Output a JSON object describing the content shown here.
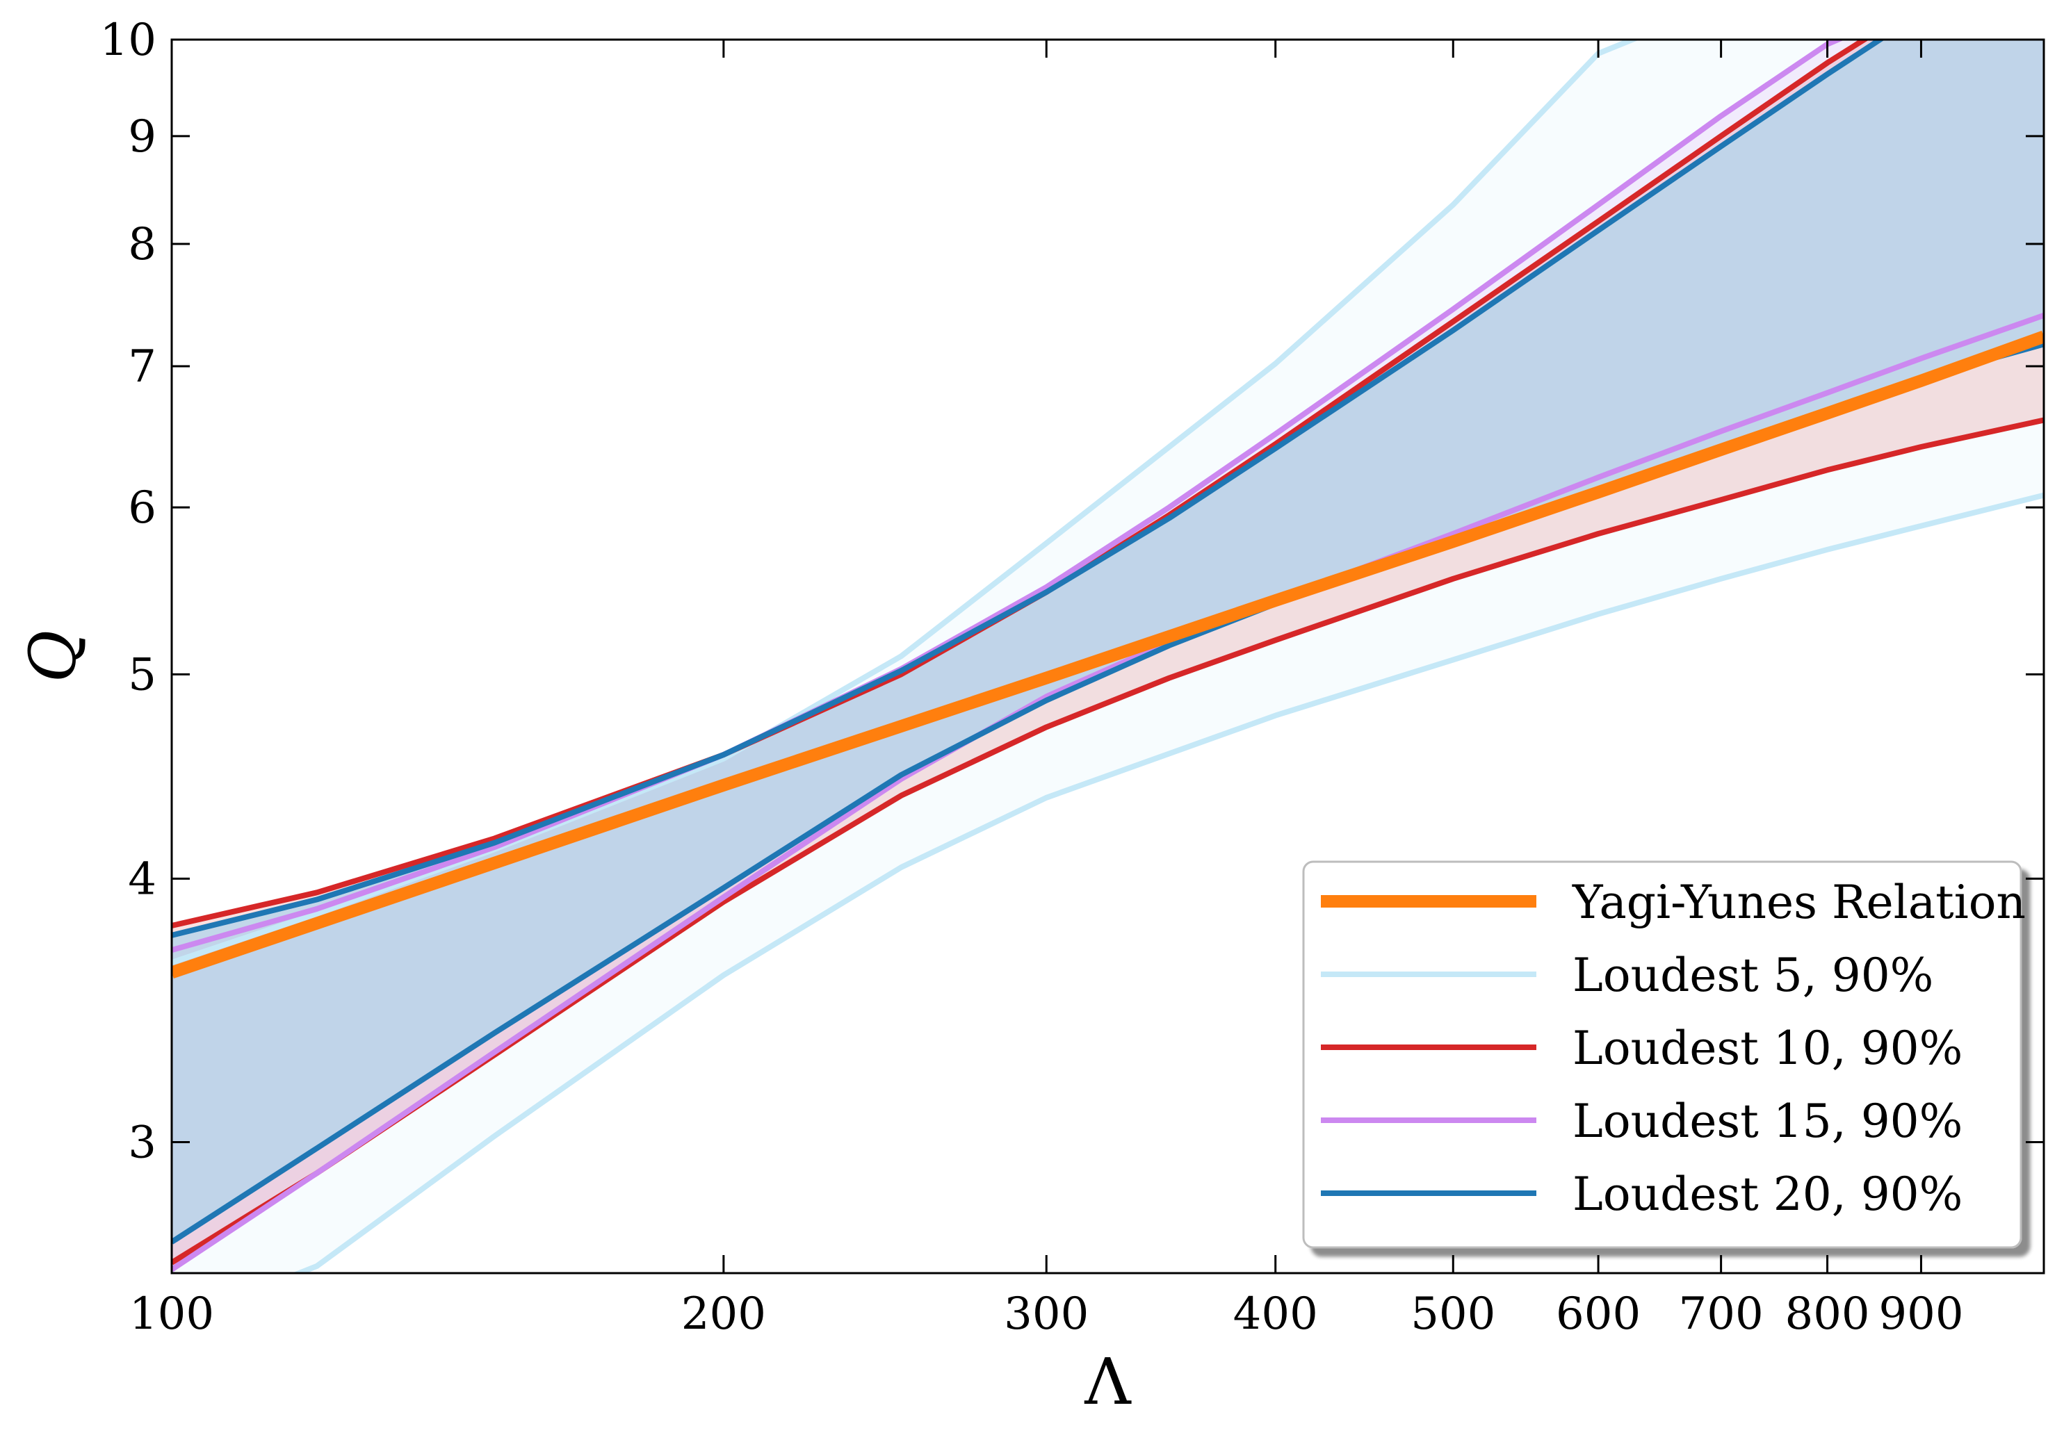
{
  "chart_data": {
    "type": "line",
    "title": "",
    "xlabel": "Λ",
    "ylabel": "Q",
    "x_scale": "log",
    "y_scale": "log",
    "xlim": [
      100,
      1050
    ],
    "ylim": [
      2.6,
      10
    ],
    "xticks": [
      {
        "value": 100,
        "label": "100"
      },
      {
        "value": 200,
        "label": "200"
      },
      {
        "value": 300,
        "label": "300"
      },
      {
        "value": 400,
        "label": "400"
      },
      {
        "value": 500,
        "label": "500"
      },
      {
        "value": 600,
        "label": "600"
      },
      {
        "value": 700,
        "label": "700"
      },
      {
        "value": 800,
        "label": "800"
      },
      {
        "value": 900,
        "label": "900"
      }
    ],
    "yticks": [
      {
        "value": 3,
        "label": "3"
      },
      {
        "value": 4,
        "label": "4"
      },
      {
        "value": 5,
        "label": "5"
      },
      {
        "value": 6,
        "label": "6"
      },
      {
        "value": 7,
        "label": "7"
      },
      {
        "value": 8,
        "label": "8"
      },
      {
        "value": 9,
        "label": "9"
      },
      {
        "value": 10,
        "label": "10"
      }
    ],
    "grid": false,
    "legend_position": "lower-right",
    "series": [
      {
        "name": "Yagi-Yunes Relation",
        "color": "#ff7f0e",
        "kind": "line",
        "x": [
          100,
          200,
          300,
          400,
          500,
          600,
          700,
          800,
          900,
          1050
        ],
        "y": [
          3.61,
          4.43,
          4.98,
          5.42,
          5.78,
          6.1,
          6.39,
          6.65,
          6.89,
          7.23
        ]
      },
      {
        "name": "Loudest 5, 90%",
        "color": "#c5e8f7",
        "kind": "band",
        "x": [
          100,
          120,
          150,
          200,
          250,
          300,
          400,
          500,
          600,
          700,
          800,
          900,
          1050
        ],
        "upper": [
          3.65,
          3.85,
          4.13,
          4.56,
          5.1,
          5.77,
          7.02,
          8.35,
          9.85,
          10.4,
          10.4,
          10.4,
          10.4
        ],
        "lower": [
          2.46,
          2.62,
          3.02,
          3.6,
          4.05,
          4.37,
          4.78,
          5.08,
          5.34,
          5.55,
          5.73,
          5.88,
          6.08
        ]
      },
      {
        "name": "Loudest 10, 90%",
        "color": "#d62728",
        "kind": "band",
        "x": [
          100,
          120,
          150,
          200,
          250,
          300,
          350,
          400,
          500,
          600,
          700,
          800,
          900,
          1050
        ],
        "upper": [
          3.8,
          3.94,
          4.18,
          4.58,
          5.0,
          5.47,
          5.95,
          6.43,
          7.35,
          8.2,
          9.0,
          9.75,
          10.4,
          10.4
        ],
        "lower": [
          2.63,
          2.9,
          3.3,
          3.9,
          4.38,
          4.72,
          4.98,
          5.19,
          5.55,
          5.83,
          6.05,
          6.25,
          6.41,
          6.6
        ]
      },
      {
        "name": "Loudest 15, 90%",
        "color": "#cc88f0",
        "kind": "band",
        "x": [
          100,
          120,
          150,
          200,
          250,
          300,
          350,
          400,
          500,
          600,
          700,
          800,
          900,
          1050
        ],
        "upper": [
          3.7,
          3.87,
          4.14,
          4.58,
          5.03,
          5.5,
          6.0,
          6.5,
          7.45,
          8.35,
          9.2,
          9.95,
          10.4,
          10.4
        ],
        "lower": [
          2.61,
          2.9,
          3.31,
          3.92,
          4.46,
          4.88,
          5.18,
          5.42,
          5.83,
          6.2,
          6.52,
          6.8,
          7.06,
          7.4
        ]
      },
      {
        "name": "Loudest 20, 90%",
        "color": "#1f77b4",
        "kind": "band",
        "fill": "#b9d5ea",
        "x": [
          100,
          120,
          150,
          200,
          250,
          300,
          350,
          400,
          500,
          600,
          700,
          800,
          900,
          1050
        ],
        "upper": [
          3.76,
          3.91,
          4.16,
          4.58,
          5.02,
          5.47,
          5.93,
          6.4,
          7.28,
          8.12,
          8.9,
          9.63,
          10.3,
          10.4
        ],
        "lower": [
          2.69,
          2.98,
          3.38,
          3.96,
          4.48,
          4.86,
          5.16,
          5.4,
          5.78,
          6.12,
          6.41,
          6.67,
          6.91,
          7.17
        ]
      }
    ]
  }
}
